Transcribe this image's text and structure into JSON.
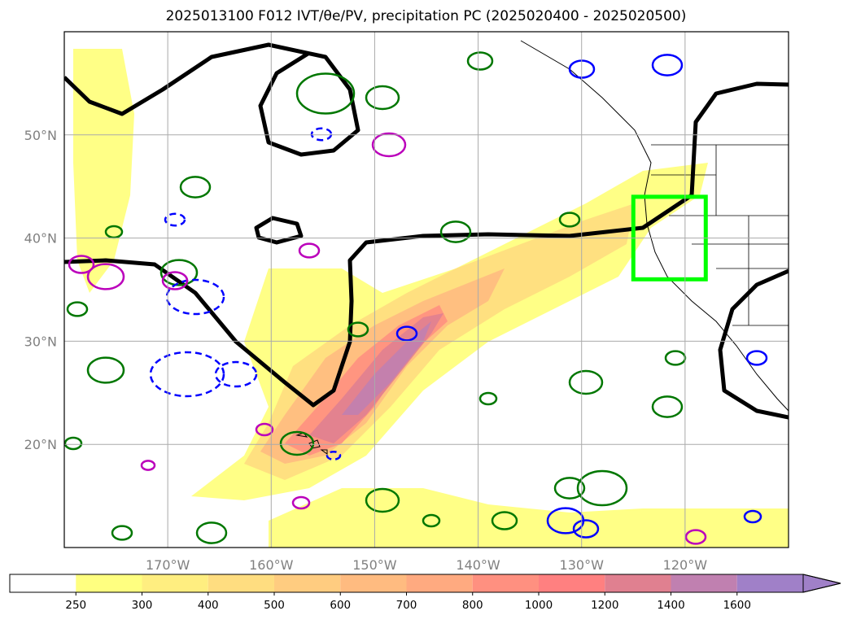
{
  "chart_data": {
    "type": "map-contour",
    "title": "2025013100 F012 IVT/θe/PV, precipitation PC (2025020400 - 2025020500)",
    "lon_range": [
      -180,
      -110
    ],
    "lat_range": [
      10,
      60
    ],
    "lon_ticks": [
      {
        "value": -170,
        "label": "170°W"
      },
      {
        "value": -160,
        "label": "160°W"
      },
      {
        "value": -150,
        "label": "150°W"
      },
      {
        "value": -140,
        "label": "140°W"
      },
      {
        "value": -130,
        "label": "130°W"
      },
      {
        "value": -120,
        "label": "120°W"
      }
    ],
    "lat_ticks": [
      {
        "value": 20,
        "label": "20°N"
      },
      {
        "value": 30,
        "label": "30°N"
      },
      {
        "value": 40,
        "label": "40°N"
      },
      {
        "value": 50,
        "label": "50°N"
      }
    ],
    "grid": true,
    "colorbar": {
      "orientation": "horizontal",
      "extend": "max",
      "levels": [
        250,
        300,
        400,
        500,
        600,
        700,
        800,
        1000,
        1200,
        1400,
        1600
      ],
      "colors": [
        "#ffff80",
        "#ffee80",
        "#ffdd80",
        "#ffcc80",
        "#ffbb80",
        "#ffaa80",
        "#ff9080",
        "#ff8080",
        "#e08090",
        "#c080b0",
        "#a080c8"
      ]
    },
    "ivt_core": {
      "start": [
        -158,
        20
      ],
      "end": [
        -145,
        33
      ],
      "peak_min": 1400
    },
    "highlight_box": {
      "lon": [
        -125,
        -118
      ],
      "lat": [
        36,
        44
      ],
      "color": "#00ff00"
    },
    "contour_colors": {
      "ivt_band": "#ffff80",
      "pv": "#000000",
      "theta_e_pos": "#007700",
      "theta_e_neg": "#0000ff",
      "precip": "#bb00bb"
    }
  }
}
